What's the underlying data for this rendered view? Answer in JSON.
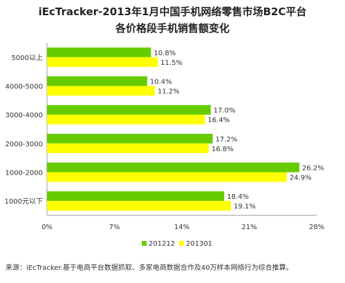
{
  "title_line1": "iEcTracker-2013年1月中国手机网络零售市场B2C平台",
  "title_line2": "各价格段手机销售额变化",
  "source": "来源：iEcTracker.基于电商平台数据抓取、多家电商数据合作及40万样本网络行为综合推算。",
  "chart_data": {
    "type": "bar",
    "orientation": "horizontal",
    "categories": [
      "5000以上",
      "4000-5000",
      "3000-4000",
      "2000-3000",
      "1000-2000",
      "1000元以下"
    ],
    "series": [
      {
        "name": "201212",
        "color": "#66cc00",
        "values": [
          10.8,
          10.4,
          17.0,
          17.2,
          26.2,
          18.4
        ],
        "labels": [
          "10.8%",
          "10.4%",
          "17.0%",
          "17.2%",
          "26.2%",
          "18.4%"
        ]
      },
      {
        "name": "201301",
        "color": "#ffff00",
        "values": [
          11.5,
          11.2,
          16.4,
          16.8,
          24.9,
          19.1
        ],
        "labels": [
          "11.5%",
          "11.2%",
          "16.4%",
          "16.8%",
          "24.9%",
          "19.1%"
        ]
      }
    ],
    "xlim": [
      0,
      28
    ],
    "xticks": [
      "0%",
      "7%",
      "14%",
      "21%",
      "28%"
    ],
    "legend_position": "bottom",
    "grid": false
  }
}
